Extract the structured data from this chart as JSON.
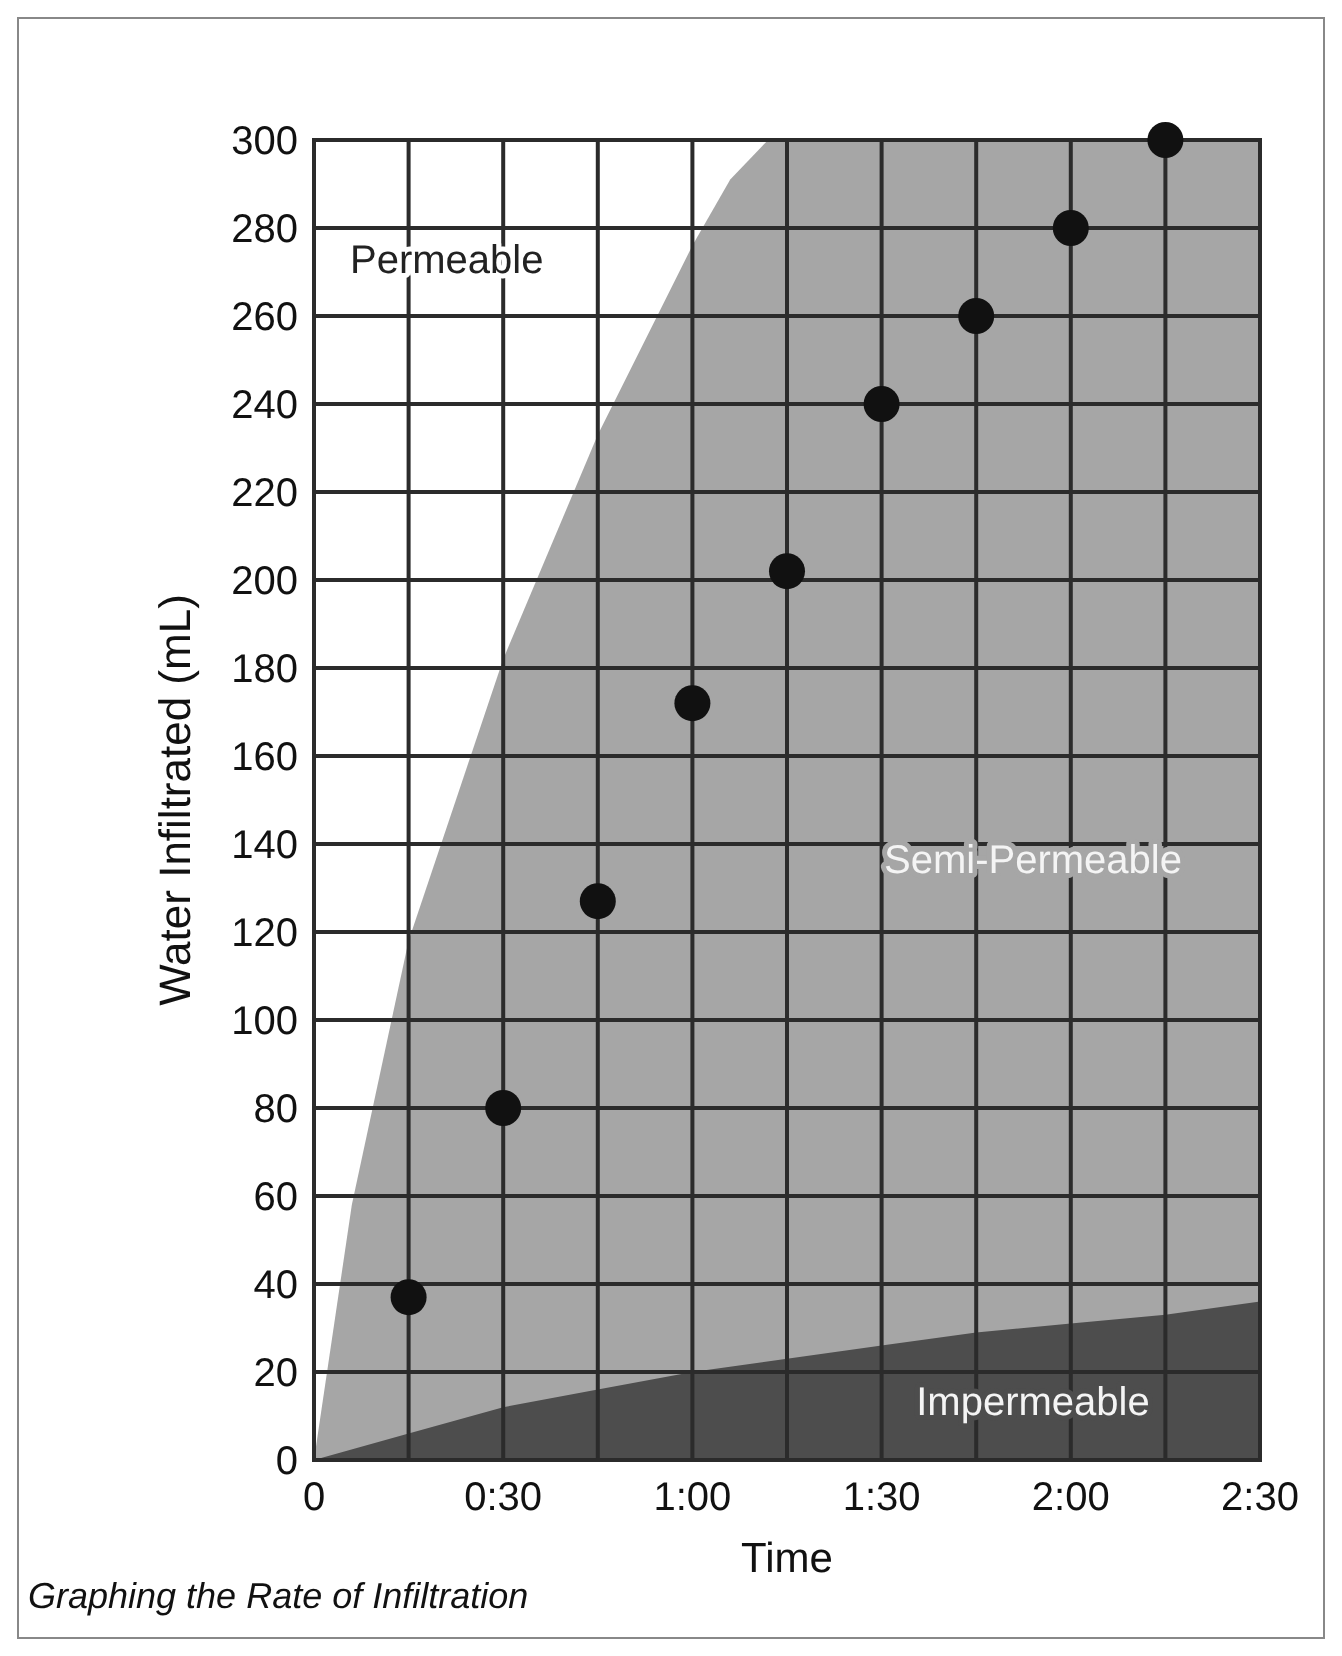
{
  "chart_data": {
    "type": "area",
    "xlabel": "Time",
    "ylabel": "Water Infiltrated (mL)",
    "annotations": [
      "Graphing the Rate of Infiltration",
      "Permeable"
    ],
    "xlim": [
      0,
      2.5
    ],
    "ylim": [
      0,
      300
    ],
    "xticks": [
      {
        "value": 0,
        "label": "0"
      },
      {
        "value": 0.25,
        "label": null
      },
      {
        "value": 0.5,
        "label": "0:30"
      },
      {
        "value": 0.75,
        "label": null
      },
      {
        "value": 1,
        "label": "1:00"
      },
      {
        "value": 1.25,
        "label": null
      },
      {
        "value": 1.5,
        "label": "1:30"
      },
      {
        "value": 1.75,
        "label": null
      },
      {
        "value": 2,
        "label": "2:00"
      },
      {
        "value": 2.25,
        "label": null
      },
      {
        "value": 2.5,
        "label": "2:30"
      }
    ],
    "yticks": [
      0,
      20,
      40,
      60,
      80,
      100,
      120,
      140,
      160,
      180,
      200,
      220,
      240,
      260,
      280,
      300
    ],
    "grid": true,
    "legend": false,
    "series": [
      {
        "name": "Semi-Permeable",
        "color": "#a6a6a6",
        "x": [
          0,
          0.1,
          0.25,
          0.5,
          0.75,
          1,
          1.1,
          1.2,
          1.5,
          2,
          2.5
        ],
        "values": [
          0,
          58,
          118,
          182,
          233,
          276,
          291,
          300,
          300,
          300,
          300
        ]
      },
      {
        "name": "Impermeable",
        "color": "#4d4d4d",
        "x": [
          0,
          0.25,
          0.5,
          0.75,
          1,
          1.25,
          1.5,
          1.75,
          2,
          2.25,
          2.5
        ],
        "values": [
          0,
          6,
          12,
          16,
          20,
          23,
          26,
          29,
          31,
          33,
          36
        ]
      },
      {
        "type": "scatter",
        "color": "#111111",
        "marker": "circle",
        "x": [
          0.25,
          0.5,
          0.75,
          1,
          1.25,
          1.5,
          1.75,
          2,
          2.25
        ],
        "values": [
          37,
          80,
          127,
          172,
          202,
          240,
          260,
          280,
          300
        ]
      }
    ]
  }
}
